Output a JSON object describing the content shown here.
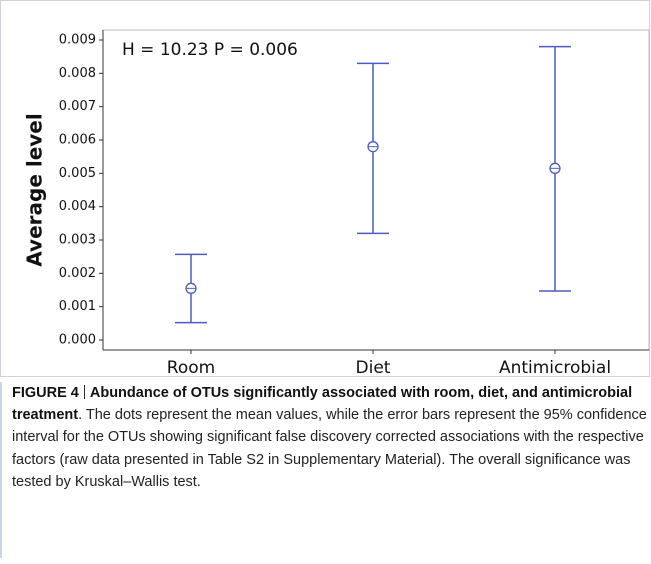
{
  "chart_data": {
    "type": "errorbar",
    "annotation": "H = 10.23  P = 0.006",
    "ylabel": "Average  level",
    "categories": [
      "Room",
      "Diet",
      "Antimicrobial"
    ],
    "values": [
      0.00155,
      0.0058,
      0.00515
    ],
    "lower": [
      0.00052,
      0.0032,
      0.00147
    ],
    "upper": [
      0.00257,
      0.0083,
      0.0088
    ],
    "color": "#4a5cc0",
    "ylim": [
      -0.0003,
      0.0093
    ],
    "yticks": [
      {
        "value": 0,
        "label": "0.000"
      },
      0.001,
      0.002,
      0.003,
      0.004,
      0.005,
      0.006,
      0.007,
      0.008,
      0.009
    ]
  },
  "caption": {
    "label": "FIGURE 4",
    "title": "Abundance of OTUs significantly associated with room, diet, and antimicrobial treatment",
    "body": ". The dots represent the mean values, while the error bars represent the 95% confidence interval for the OTUs showing significant false discovery corrected associations with the respective factors (raw data presented in Table S2 in Supplementary Material). The overall significance was tested by Kruskal–Wallis test."
  }
}
